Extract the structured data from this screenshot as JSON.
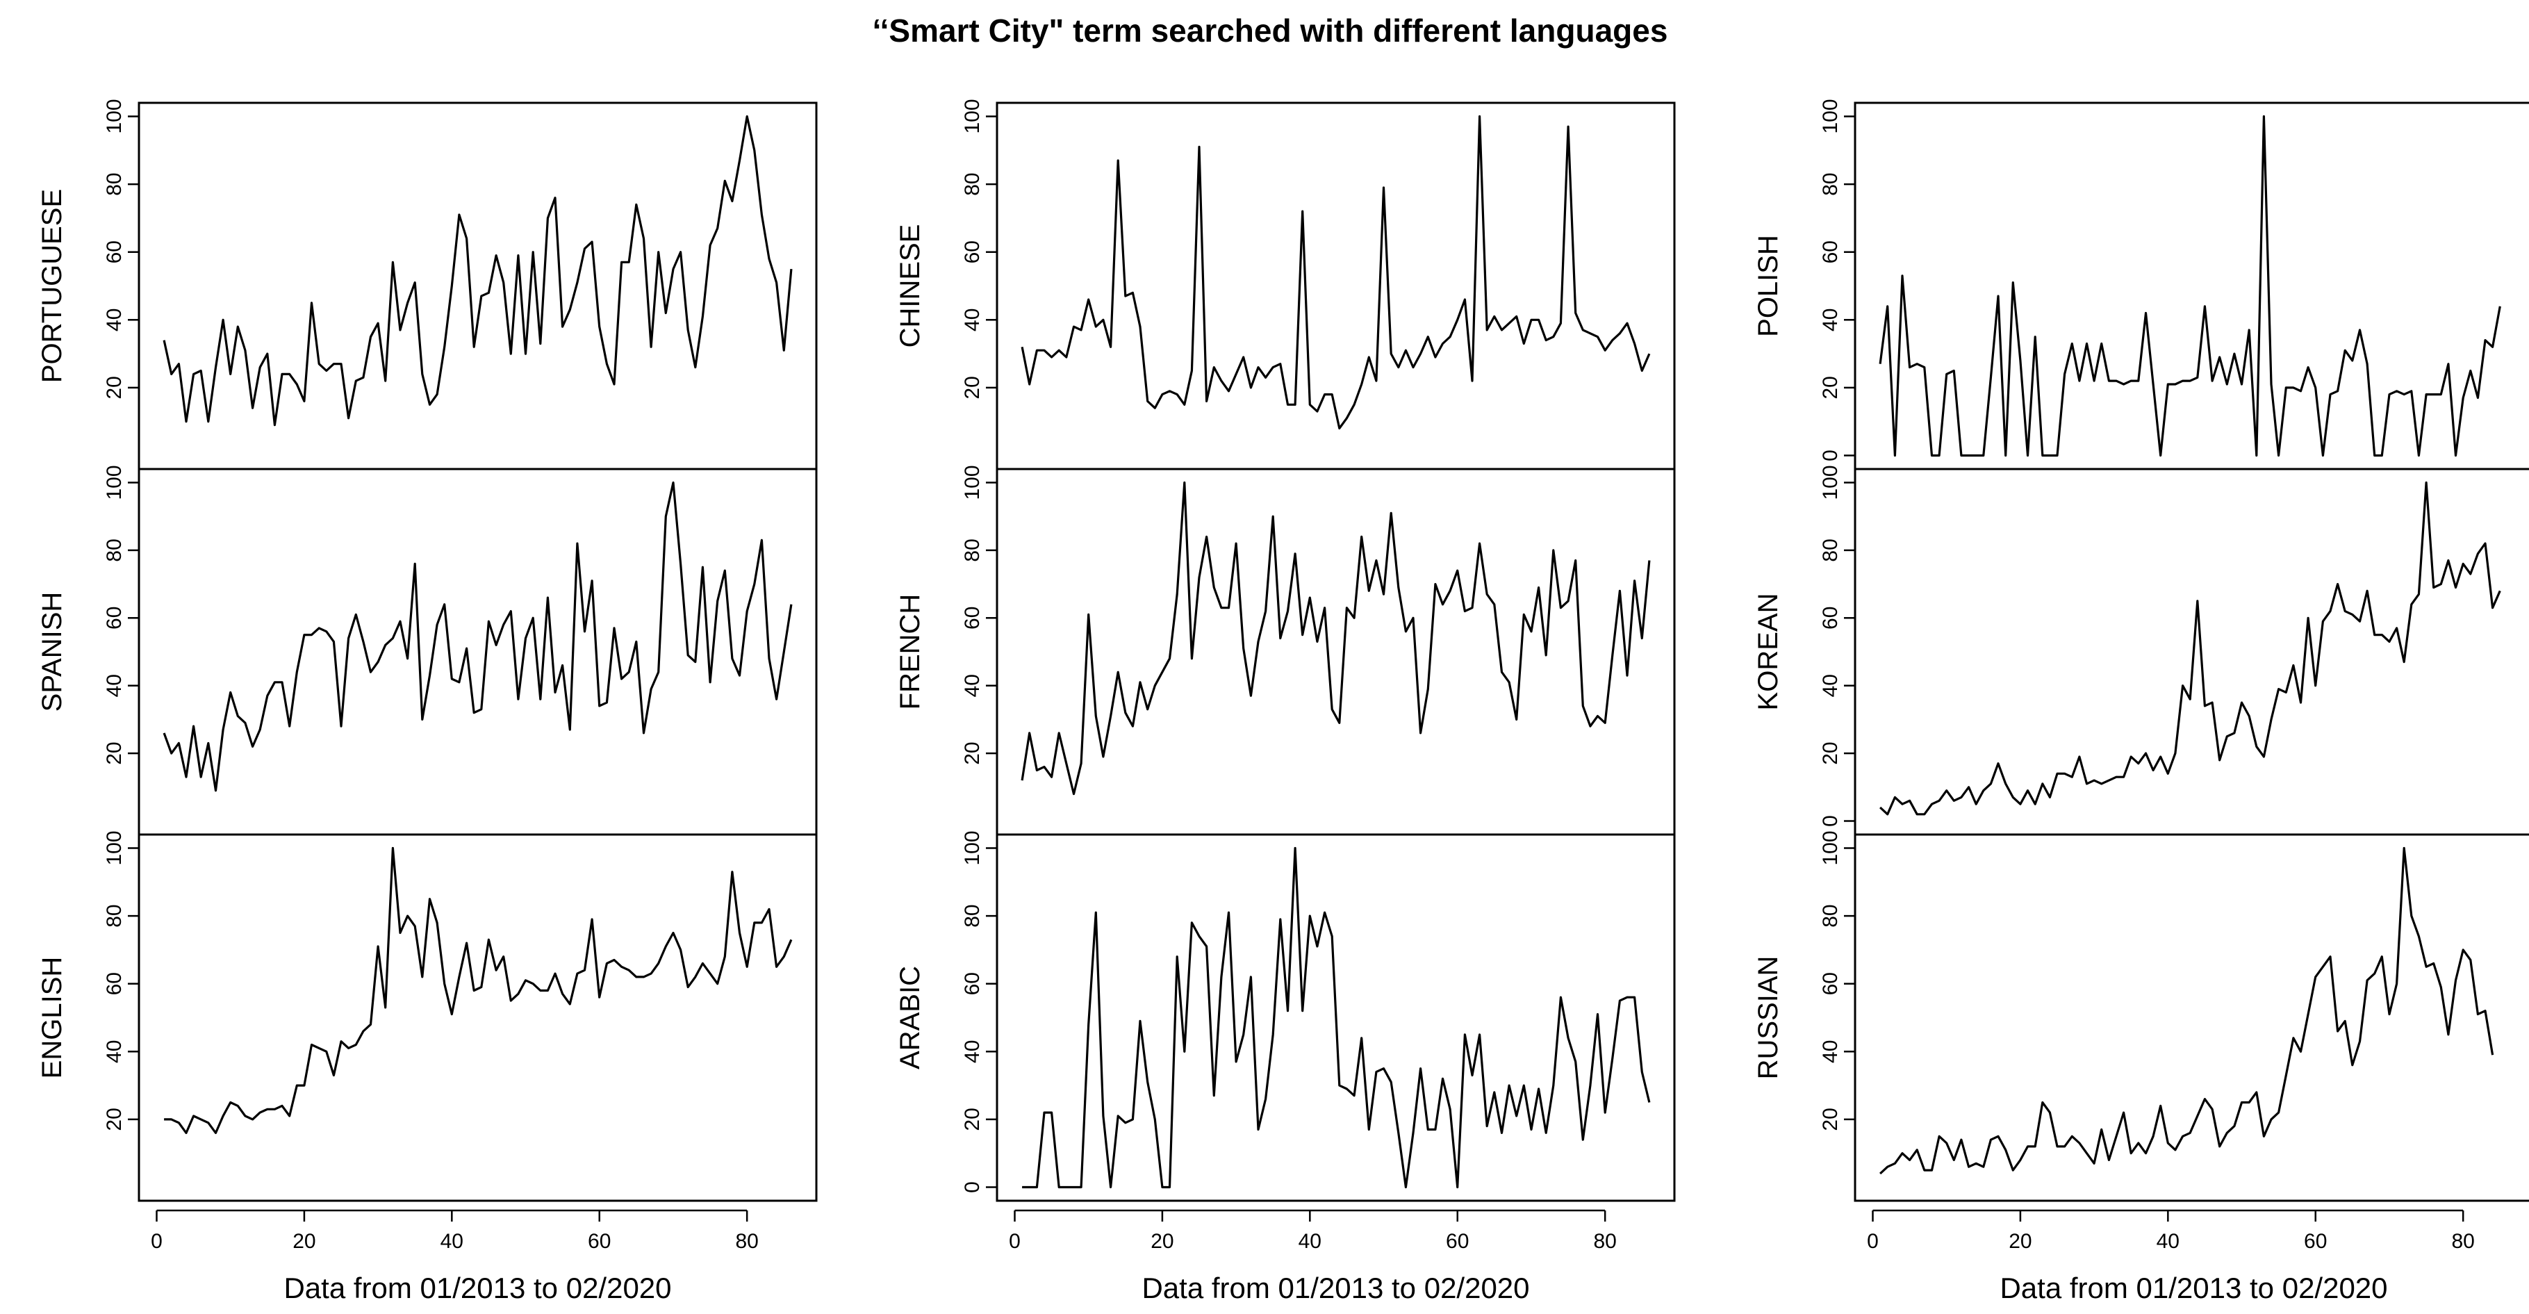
{
  "chart_data": {
    "type": "line",
    "title": "‘‘Smart City\" term searched with different languages",
    "xlabel": "Data from 01/2013 to 02/2020",
    "xlim": [
      1,
      86
    ],
    "ylim": [
      0,
      100
    ],
    "xticks": [
      0,
      20,
      40,
      60,
      80
    ],
    "grid": false,
    "legend": "none",
    "panels": [
      {
        "col": 0,
        "row": 0,
        "name": "PORTUGUESE",
        "yticks": [
          20,
          40,
          60,
          80,
          100
        ],
        "show_x": false,
        "values": [
          34,
          24,
          27,
          10,
          24,
          25,
          10,
          26,
          40,
          24,
          38,
          31,
          14,
          26,
          30,
          9,
          24,
          24,
          21,
          16,
          45,
          27,
          25,
          27,
          27,
          11,
          22,
          23,
          35,
          39,
          22,
          57,
          37,
          45,
          51,
          24,
          15,
          18,
          32,
          50,
          71,
          64,
          32,
          47,
          48,
          59,
          51,
          30,
          59,
          30,
          60,
          33,
          70,
          76,
          38,
          43,
          51,
          61,
          63,
          38,
          27,
          21,
          57,
          57,
          74,
          64,
          32,
          60,
          42,
          55,
          60,
          37,
          26,
          41,
          62,
          67,
          81,
          75,
          87,
          100,
          90,
          71,
          58,
          51,
          31,
          55
        ]
      },
      {
        "col": 0,
        "row": 1,
        "name": "SPANISH",
        "yticks": [
          20,
          40,
          60,
          80,
          100
        ],
        "show_x": false,
        "values": [
          26,
          20,
          23,
          13,
          28,
          13,
          23,
          9,
          27,
          38,
          31,
          29,
          22,
          27,
          37,
          41,
          41,
          28,
          44,
          55,
          55,
          57,
          56,
          53,
          28,
          54,
          61,
          53,
          44,
          47,
          52,
          54,
          59,
          48,
          76,
          30,
          43,
          58,
          64,
          42,
          41,
          51,
          32,
          33,
          59,
          52,
          58,
          62,
          36,
          54,
          60,
          36,
          66,
          38,
          46,
          27,
          82,
          56,
          71,
          34,
          35,
          57,
          42,
          44,
          53,
          26,
          39,
          44,
          90,
          100,
          76,
          49,
          47,
          75,
          41,
          65,
          74,
          48,
          43,
          62,
          70,
          83,
          48,
          36,
          50,
          64
        ]
      },
      {
        "col": 0,
        "row": 2,
        "name": "ENGLISH",
        "yticks": [
          20,
          40,
          60,
          80,
          100
        ],
        "show_x": true,
        "values": [
          20,
          20,
          19,
          16,
          21,
          20,
          19,
          16,
          21,
          25,
          24,
          21,
          20,
          22,
          23,
          23,
          24,
          21,
          30,
          30,
          42,
          41,
          40,
          33,
          43,
          41,
          42,
          46,
          48,
          71,
          53,
          100,
          75,
          80,
          77,
          62,
          85,
          78,
          60,
          51,
          62,
          72,
          58,
          59,
          73,
          64,
          68,
          55,
          57,
          61,
          60,
          58,
          58,
          63,
          57,
          54,
          63,
          64,
          79,
          56,
          66,
          67,
          65,
          64,
          62,
          62,
          63,
          66,
          71,
          75,
          70,
          59,
          62,
          66,
          63,
          60,
          68,
          93,
          75,
          65,
          78,
          78,
          82,
          65,
          68,
          73
        ]
      },
      {
        "col": 1,
        "row": 0,
        "name": "CHINESE",
        "yticks": [
          20,
          40,
          60,
          80,
          100
        ],
        "show_x": false,
        "values": [
          32,
          21,
          31,
          31,
          29,
          31,
          29,
          38,
          37,
          46,
          38,
          40,
          32,
          87,
          47,
          48,
          38,
          16,
          14,
          18,
          19,
          18,
          15,
          25,
          91,
          16,
          26,
          22,
          19,
          24,
          29,
          20,
          26,
          23,
          26,
          27,
          15,
          15,
          72,
          15,
          13,
          18,
          18,
          8,
          11,
          15,
          21,
          29,
          22,
          79,
          30,
          26,
          31,
          26,
          30,
          35,
          29,
          33,
          35,
          40,
          46,
          22,
          100,
          37,
          41,
          37,
          39,
          41,
          33,
          40,
          40,
          34,
          35,
          39,
          97,
          42,
          37,
          36,
          35,
          31,
          34,
          36,
          39,
          33,
          25,
          30
        ]
      },
      {
        "col": 1,
        "row": 1,
        "name": "FRENCH",
        "yticks": [
          20,
          40,
          60,
          80,
          100
        ],
        "show_x": false,
        "values": [
          12,
          26,
          15,
          16,
          13,
          26,
          17,
          8,
          17,
          61,
          31,
          19,
          31,
          44,
          32,
          28,
          41,
          33,
          40,
          44,
          48,
          67,
          100,
          48,
          72,
          84,
          69,
          63,
          63,
          82,
          51,
          37,
          53,
          62,
          90,
          54,
          62,
          79,
          55,
          66,
          53,
          63,
          33,
          29,
          63,
          60,
          84,
          68,
          77,
          67,
          91,
          69,
          56,
          60,
          26,
          39,
          70,
          64,
          68,
          74,
          62,
          63,
          82,
          67,
          64,
          44,
          41,
          30,
          61,
          56,
          69,
          49,
          80,
          63,
          65,
          77,
          34,
          28,
          31,
          29,
          49,
          68,
          43,
          71,
          54,
          77
        ]
      },
      {
        "col": 1,
        "row": 2,
        "name": "ARABIC",
        "yticks": [
          0,
          20,
          40,
          60,
          80,
          100
        ],
        "show_x": true,
        "values": [
          0,
          0,
          0,
          22,
          22,
          0,
          0,
          0,
          0,
          48,
          81,
          21,
          0,
          21,
          19,
          20,
          49,
          31,
          20,
          0,
          0,
          68,
          40,
          78,
          74,
          71,
          27,
          62,
          81,
          37,
          45,
          62,
          17,
          26,
          45,
          79,
          52,
          100,
          52,
          80,
          71,
          81,
          74,
          30,
          29,
          27,
          44,
          17,
          34,
          35,
          31,
          16,
          0,
          16,
          35,
          17,
          17,
          32,
          23,
          0,
          45,
          33,
          45,
          18,
          28,
          16,
          30,
          21,
          30,
          17,
          29,
          16,
          30,
          56,
          44,
          37,
          14,
          30,
          51,
          22,
          38,
          55,
          56,
          56,
          34,
          25
        ]
      },
      {
        "col": 2,
        "row": 0,
        "name": "POLISH",
        "yticks": [
          0,
          20,
          40,
          60,
          80,
          100
        ],
        "show_x": false,
        "values": [
          27,
          44,
          0,
          53,
          26,
          27,
          26,
          0,
          0,
          24,
          25,
          0,
          0,
          0,
          0,
          23,
          47,
          0,
          51,
          28,
          0,
          35,
          0,
          0,
          0,
          24,
          33,
          22,
          33,
          22,
          33,
          22,
          22,
          21,
          22,
          22,
          42,
          21,
          0,
          21,
          21,
          22,
          22,
          23,
          44,
          22,
          29,
          21,
          30,
          21,
          37,
          0,
          100,
          21,
          0,
          20,
          20,
          19,
          26,
          20,
          0,
          18,
          19,
          31,
          28,
          37,
          27,
          0,
          0,
          18,
          19,
          18,
          19,
          0,
          18,
          18,
          18,
          27,
          0,
          17,
          25,
          17,
          34,
          32,
          44
        ]
      },
      {
        "col": 2,
        "row": 1,
        "name": "KOREAN",
        "yticks": [
          0,
          20,
          40,
          60,
          80,
          100
        ],
        "show_x": false,
        "values": [
          4,
          2,
          7,
          5,
          6,
          2,
          2,
          5,
          6,
          9,
          6,
          7,
          10,
          5,
          9,
          11,
          17,
          11,
          7,
          5,
          9,
          5,
          11,
          7,
          14,
          14,
          13,
          19,
          11,
          12,
          11,
          12,
          13,
          13,
          19,
          17,
          20,
          15,
          19,
          14,
          20,
          40,
          36,
          65,
          34,
          35,
          18,
          25,
          26,
          35,
          31,
          22,
          19,
          30,
          39,
          38,
          46,
          35,
          60,
          40,
          59,
          62,
          70,
          62,
          61,
          59,
          68,
          55,
          55,
          53,
          57,
          47,
          64,
          67,
          100,
          69,
          70,
          77,
          69,
          76,
          73,
          79,
          82,
          63,
          68
        ]
      },
      {
        "col": 2,
        "row": 2,
        "name": "RUSSIAN",
        "yticks": [
          20,
          40,
          60,
          80,
          100
        ],
        "show_x": true,
        "values": [
          4,
          6,
          7,
          10,
          8,
          11,
          5,
          5,
          15,
          13,
          8,
          14,
          6,
          7,
          6,
          14,
          15,
          11,
          5,
          8,
          12,
          12,
          25,
          22,
          12,
          12,
          15,
          13,
          10,
          7,
          17,
          8,
          15,
          22,
          10,
          13,
          10,
          15,
          24,
          13,
          11,
          15,
          16,
          21,
          26,
          23,
          12,
          16,
          18,
          25,
          25,
          28,
          15,
          20,
          22,
          33,
          44,
          40,
          51,
          62,
          65,
          68,
          46,
          49,
          36,
          43,
          61,
          63,
          68,
          51,
          60,
          100,
          80,
          74,
          65,
          66,
          59,
          45,
          61,
          70,
          67,
          51,
          52,
          39
        ]
      }
    ]
  }
}
